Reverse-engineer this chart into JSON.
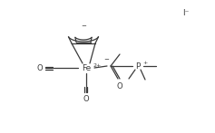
{
  "background_color": "#ffffff",
  "text_color": "#3a3a3a",
  "line_color": "#3a3a3a",
  "fig_width": 2.37,
  "fig_height": 1.47,
  "dpi": 100,
  "iodide_label": "I⁻",
  "fe_label": "Fe",
  "fe_charge": "2+",
  "p_label": "P",
  "p_charge": "+",
  "neg_label": "−",
  "font_size_main": 6.5,
  "font_size_small": 5.0,
  "font_size_o": 6.0
}
